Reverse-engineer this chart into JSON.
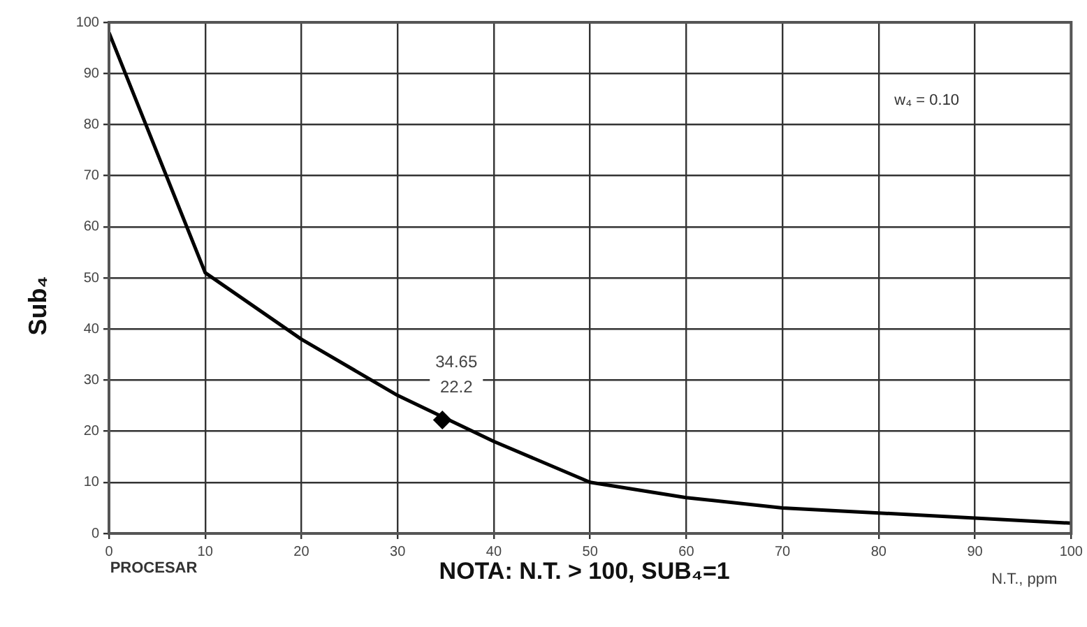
{
  "chart_data": {
    "type": "line",
    "ylabel": "Sub₄",
    "xlabel": "N.T., ppm",
    "x": [
      0,
      10,
      20,
      30,
      40,
      50,
      60,
      70,
      80,
      90,
      100
    ],
    "series": [
      {
        "type": "line",
        "color": "#000000",
        "marker": "none",
        "values": [
          98,
          51,
          38,
          27,
          18,
          10,
          7,
          5,
          4,
          3,
          2
        ]
      },
      {
        "type": "scatter",
        "color": "#000000",
        "marker": "diamond",
        "x": [
          34.65
        ],
        "values": [
          22.2
        ]
      }
    ],
    "xlim": [
      0,
      100
    ],
    "xticks": [
      0,
      10,
      20,
      30,
      40,
      50,
      60,
      70,
      80,
      90,
      100
    ],
    "ylim": [
      0,
      100
    ],
    "yticks": [
      0,
      10,
      20,
      30,
      40,
      50,
      60,
      70,
      80,
      90,
      100
    ],
    "grid": true,
    "annotations": [
      {
        "text": "34.65\n22.2",
        "x": 34.65,
        "y": 22.2
      },
      "w₄ = 0.10",
      "PROCESAR",
      "NOTA: N.T. > 100, SUB₄=1"
    ]
  }
}
